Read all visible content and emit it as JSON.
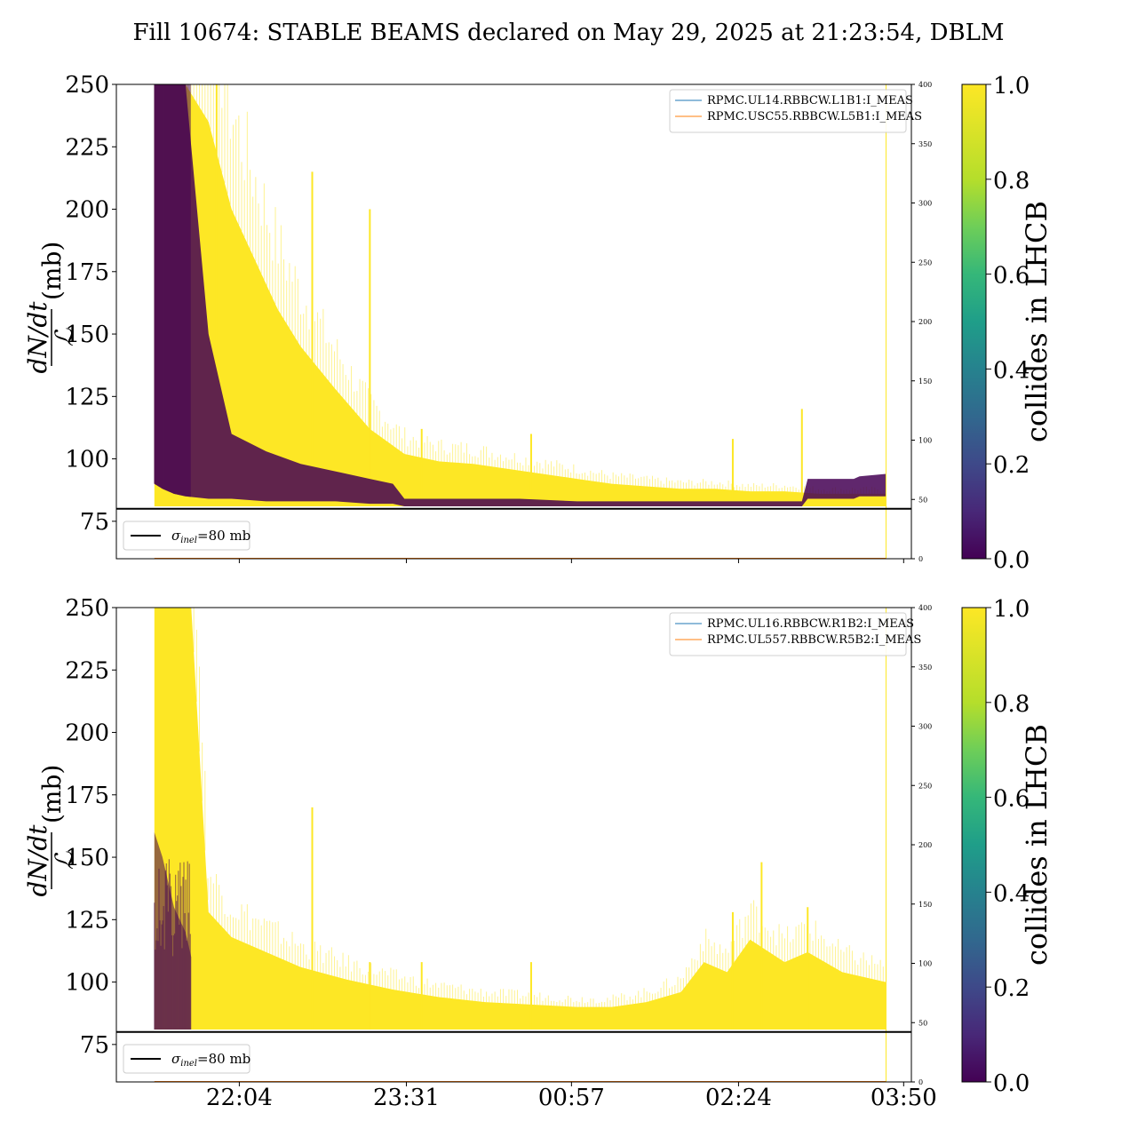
{
  "title": "Fill 10674: STABLE BEAMS declared on May 29, 2025 at 21:23:54, DBLM",
  "colors": {
    "lhcb_yes": "#fde725",
    "lhcb_no": "#440154",
    "reference_line": "#000000",
    "rpmc_a": "#1f77b4",
    "rpmc_b": "#ff7f0e"
  },
  "chart_data": [
    {
      "type": "line",
      "panel": "top",
      "ylabel_num": "dN/dt",
      "ylabel_den": "ℒ",
      "ylabel_unit": "(mb)",
      "ylim": [
        60,
        250
      ],
      "yticks": [
        "250",
        "225",
        "200",
        "175",
        "150",
        "125",
        "100",
        "75"
      ],
      "ytick_values": [
        250,
        225,
        200,
        175,
        150,
        125,
        100,
        75
      ],
      "y2lim": [
        0,
        400
      ],
      "y2ticks": [
        "400",
        "350",
        "300",
        "250",
        "200",
        "150",
        "100",
        "50",
        "0"
      ],
      "y2tick_values": [
        400,
        350,
        300,
        250,
        200,
        150,
        100,
        50,
        0
      ],
      "xlim_hours": [
        21.0,
        27.9
      ],
      "xticks": [],
      "reference_line": {
        "value": 80,
        "label_sym": "σ",
        "label_sub": "inel",
        "label_rest": "=80 mb"
      },
      "legend": [
        "RPMC.UL14.RBBCW.L1B1:I_MEAS",
        "RPMC.USC55.RBBCW.L5B1:I_MEAS"
      ],
      "end_time_hours": 27.68,
      "colliding": {
        "x_hours": [
          21.33,
          21.4,
          21.5,
          21.6,
          21.8,
          22.0,
          22.2,
          22.4,
          22.6,
          22.9,
          23.2,
          23.5,
          23.8,
          24.1,
          24.4,
          24.7,
          25.0,
          25.3,
          25.6,
          25.9,
          26.2,
          26.5,
          26.8,
          27.1,
          27.4,
          27.68
        ],
        "band_top": [
          250,
          250,
          250,
          250,
          235,
          200,
          180,
          160,
          145,
          128,
          112,
          102,
          99,
          98,
          96,
          94,
          92,
          90,
          89,
          88,
          88,
          87,
          87,
          86,
          86,
          86
        ],
        "band_bottom": [
          81,
          81,
          81,
          81,
          81,
          81,
          81,
          81,
          81,
          81,
          81,
          81,
          81,
          81,
          81,
          81,
          81,
          81,
          81,
          81,
          81,
          81,
          81,
          81,
          81,
          81
        ],
        "spikes": [
          {
            "x": 21.87,
            "y": 250
          },
          {
            "x": 22.7,
            "y": 215
          },
          {
            "x": 23.2,
            "y": 200
          },
          {
            "x": 23.65,
            "y": 112
          },
          {
            "x": 24.6,
            "y": 110
          },
          {
            "x": 26.35,
            "y": 108
          },
          {
            "x": 26.95,
            "y": 120
          }
        ]
      },
      "non_colliding": {
        "x_hours": [
          21.33,
          21.4,
          21.5,
          21.6,
          21.8,
          22.0,
          22.3,
          22.6,
          22.9,
          23.2,
          23.4,
          23.5,
          24.0,
          24.5,
          25.0,
          25.5,
          26.0,
          26.5,
          26.95,
          27.0,
          27.4,
          27.45,
          27.68
        ],
        "upper": [
          250,
          250,
          250,
          250,
          150,
          110,
          103,
          98,
          95,
          92,
          90,
          84,
          84,
          84,
          83,
          83,
          83,
          83,
          83,
          92,
          92,
          93,
          94
        ],
        "lower": [
          90,
          88,
          86,
          85,
          84,
          84,
          83,
          83,
          83,
          82,
          82,
          81,
          81,
          81,
          81,
          81,
          81,
          81,
          81,
          84,
          84,
          85,
          85
        ]
      }
    },
    {
      "type": "line",
      "panel": "bottom",
      "ylabel_num": "dN/dt",
      "ylabel_den": "ℒ",
      "ylabel_unit": "(mb)",
      "ylim": [
        60,
        250
      ],
      "yticks": [
        "250",
        "225",
        "200",
        "175",
        "150",
        "125",
        "100",
        "75"
      ],
      "ytick_values": [
        250,
        225,
        200,
        175,
        150,
        125,
        100,
        75
      ],
      "y2lim": [
        0,
        400
      ],
      "y2ticks": [
        "400",
        "350",
        "300",
        "250",
        "200",
        "150",
        "100",
        "50",
        "0"
      ],
      "y2tick_values": [
        400,
        350,
        300,
        250,
        200,
        150,
        100,
        50,
        0
      ],
      "xlim_hours": [
        21.0,
        27.9
      ],
      "xticks": [
        "22:04",
        "23:31",
        "00:57",
        "02:24",
        "03:50"
      ],
      "xtick_values_hours": [
        22.067,
        23.517,
        24.95,
        26.4,
        27.833
      ],
      "reference_line": {
        "value": 80,
        "label_sym": "σ",
        "label_sub": "inel",
        "label_rest": "=80 mb"
      },
      "legend": [
        "RPMC.UL16.RBBCW.R1B2:I_MEAS",
        "RPMC.UL557.RBBCW.R5B2:I_MEAS"
      ],
      "end_time_hours": 27.68,
      "colliding": {
        "x_hours": [
          21.33,
          21.4,
          21.5,
          21.6,
          21.65,
          21.8,
          22.0,
          22.3,
          22.6,
          23.0,
          23.4,
          23.8,
          24.2,
          24.6,
          25.0,
          25.3,
          25.6,
          25.9,
          26.1,
          26.3,
          26.5,
          26.8,
          27.0,
          27.3,
          27.68
        ],
        "band_top": [
          250,
          250,
          250,
          250,
          250,
          128,
          118,
          112,
          106,
          101,
          97,
          94,
          92,
          91,
          90,
          90,
          92,
          96,
          108,
          104,
          117,
          108,
          112,
          104,
          100
        ],
        "band_bottom": [
          81,
          81,
          81,
          81,
          81,
          81,
          81,
          81,
          81,
          81,
          81,
          81,
          81,
          81,
          81,
          81,
          81,
          81,
          81,
          81,
          81,
          81,
          81,
          81,
          81
        ],
        "spikes": [
          {
            "x": 22.7,
            "y": 170
          },
          {
            "x": 23.2,
            "y": 108
          },
          {
            "x": 23.65,
            "y": 108
          },
          {
            "x": 24.6,
            "y": 108
          },
          {
            "x": 26.35,
            "y": 128
          },
          {
            "x": 26.6,
            "y": 148
          },
          {
            "x": 27.0,
            "y": 130
          }
        ]
      },
      "non_colliding": {
        "x_hours": [
          21.33,
          21.4,
          21.5,
          21.6,
          21.65
        ],
        "upper": [
          160,
          150,
          130,
          120,
          110
        ],
        "lower": [
          81,
          81,
          81,
          81,
          81
        ]
      }
    }
  ],
  "colorbar": {
    "label": "collides in LHCB",
    "ticks": [
      "1.0",
      "0.8",
      "0.6",
      "0.4",
      "0.2",
      "0.0"
    ],
    "tick_values": [
      1.0,
      0.8,
      0.6,
      0.4,
      0.2,
      0.0
    ]
  }
}
